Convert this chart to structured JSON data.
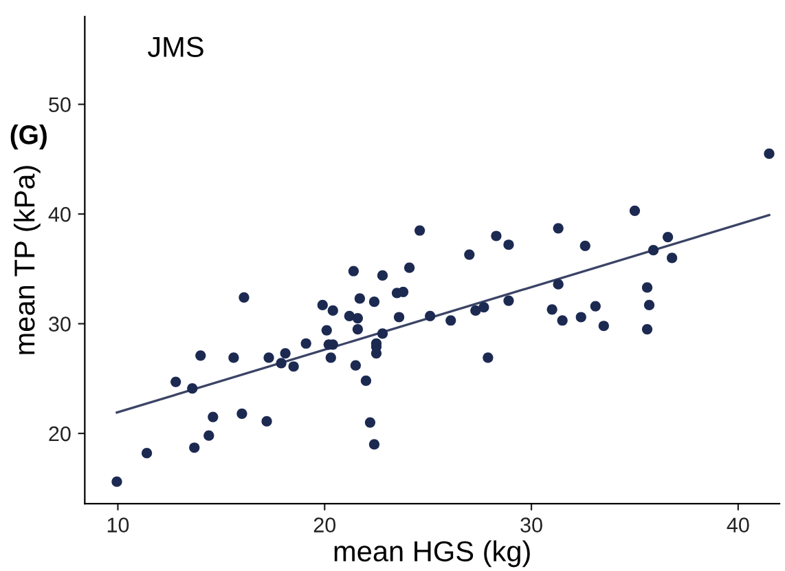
{
  "chart_data": {
    "type": "scatter",
    "title": "JMS",
    "annotations": [
      "(G)"
    ],
    "xlabel": "mean HGS (kg)",
    "ylabel": "mean TP (kPa)",
    "xlim": [
      8.4,
      42.0
    ],
    "ylim": [
      13.6,
      58
    ],
    "xticks": [
      10,
      20,
      30,
      40
    ],
    "yticks": [
      20,
      30,
      40,
      50
    ],
    "grid": false,
    "legend": false,
    "marker": "circle",
    "series": [
      {
        "color": "#1c2a52",
        "x": [
          9.95,
          11.4,
          13.7,
          14.4,
          14.6,
          12.8,
          13.6,
          14.0,
          15.6,
          16.1,
          16.0,
          17.2,
          17.3,
          17.9,
          18.1,
          18.5,
          19.1,
          20.1,
          20.2,
          20.4,
          20.3,
          19.9,
          20.4,
          21.2,
          21.4,
          21.7,
          21.6,
          21.6,
          22.4,
          22.8,
          22.8,
          22.5,
          22.5,
          22.5,
          21.5,
          22.0,
          22.2,
          22.4,
          23.5,
          23.8,
          23.6,
          24.1,
          24.6,
          25.1,
          26.1,
          27.0,
          27.3,
          27.7,
          27.9,
          28.3,
          28.9,
          28.9,
          31.0,
          31.3,
          31.3,
          31.5,
          32.4,
          32.6,
          33.1,
          33.5,
          35.0,
          35.6,
          35.7,
          35.6,
          35.9,
          36.6,
          36.8,
          41.5
        ],
        "values": [
          15.6,
          18.2,
          18.7,
          19.8,
          21.5,
          24.7,
          24.1,
          27.1,
          26.9,
          32.4,
          21.8,
          21.1,
          26.9,
          26.4,
          27.3,
          26.1,
          28.2,
          29.4,
          28.1,
          28.1,
          26.9,
          31.7,
          31.2,
          30.7,
          34.8,
          32.3,
          30.5,
          29.5,
          32.0,
          34.4,
          29.1,
          28.2,
          27.9,
          27.3,
          26.2,
          24.8,
          21.0,
          19.0,
          32.8,
          32.9,
          30.6,
          35.1,
          38.5,
          30.7,
          30.3,
          36.3,
          31.2,
          31.5,
          26.9,
          38.0,
          37.2,
          32.1,
          31.3,
          38.7,
          33.6,
          30.3,
          30.6,
          37.1,
          31.6,
          29.8,
          40.3,
          33.3,
          31.7,
          29.5,
          36.7,
          37.9,
          36.0,
          45.5
        ]
      },
      {
        "type": "line",
        "color": "#3b4466",
        "marker": "none",
        "line_style": "solid",
        "x": [
          9.95,
          41.5
        ],
        "values": [
          21.9,
          39.9
        ]
      }
    ]
  }
}
